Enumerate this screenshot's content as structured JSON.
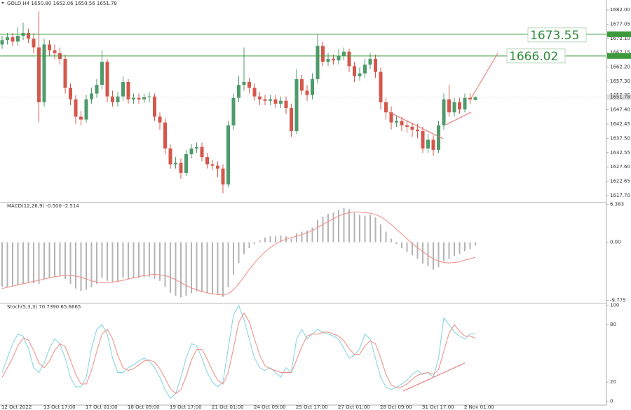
{
  "chart_data": [
    {
      "type": "candlestick",
      "title": "GOLD,H4 1650.80 1652.06 1650.56 1651.78",
      "up_color": "#4f9a6b",
      "down_color": "#d5574b",
      "categories": [
        "12 Oct 2022",
        null,
        null,
        null,
        null,
        null,
        null,
        null,
        "13 Oct 17:00",
        null,
        null,
        null,
        null,
        null,
        null,
        null,
        "17 Oct 01:00",
        null,
        null,
        null,
        null,
        null,
        null,
        null,
        "18 Oct 09:00",
        null,
        null,
        null,
        null,
        null,
        null,
        null,
        "19 Oct 17:00",
        null,
        null,
        null,
        null,
        null,
        null,
        null,
        "21 Oct 01:00",
        null,
        null,
        null,
        null,
        null,
        null,
        null,
        "24 Oct 09:00",
        null,
        null,
        null,
        null,
        null,
        null,
        null,
        "25 Oct 17:00",
        null,
        null,
        null,
        null,
        null,
        null,
        null,
        "27 Oct 01:00",
        null,
        null,
        null,
        null,
        null,
        null,
        null,
        "28 Oct 09:00",
        null,
        null,
        null,
        null,
        null,
        null,
        null,
        "31 Oct 17:00",
        null,
        null,
        null,
        null,
        null,
        null,
        null,
        "2 Nov 01:00",
        null,
        null
      ],
      "open": [
        1670,
        1671.5,
        1672.5,
        1671,
        1673,
        1674,
        1672,
        1669,
        1650,
        1670,
        1668,
        1667,
        1665,
        1655,
        1651,
        1645,
        1644,
        1651,
        1653,
        1656,
        1664,
        1652,
        1650,
        1652,
        1657,
        1651,
        1651.5,
        1651,
        1651.8,
        1652,
        1645,
        1643,
        1634,
        1628.5,
        1629,
        1625.5,
        1632,
        1634,
        1634.5,
        1631,
        1628.5,
        1628,
        1627,
        1621.5,
        1642,
        1651.5,
        1656,
        1657,
        1655,
        1652,
        1651,
        1650.5,
        1651,
        1649.5,
        1650.5,
        1648,
        1640,
        1658,
        1654,
        1652.5,
        1658,
        1669.5,
        1664,
        1665,
        1664.5,
        1666,
        1667.5,
        1662.5,
        1659,
        1660,
        1663,
        1665,
        1660.5,
        1650,
        1646.5,
        1643,
        1643.5,
        1642,
        1641.5,
        1640.5,
        1640,
        1634,
        1637,
        1633.5,
        1642,
        1651,
        1646.5,
        1650,
        1647.5,
        1651.5,
        1650.8
      ],
      "high": [
        1673,
        1674,
        1674,
        1676,
        1677.5,
        1675.5,
        1674,
        1681.5,
        1672,
        1671.5,
        1670,
        1669,
        1666.5,
        1656.5,
        1652.5,
        1647,
        1652.5,
        1655,
        1658,
        1668,
        1665,
        1654,
        1653.5,
        1659,
        1658,
        1653,
        1653,
        1653,
        1653.5,
        1653,
        1646.5,
        1644.5,
        1635.5,
        1631,
        1630.5,
        1633.5,
        1635.5,
        1636,
        1636,
        1632.5,
        1630,
        1629.5,
        1628.5,
        1643.5,
        1653,
        1659,
        1669,
        1658.5,
        1656.5,
        1653.5,
        1652.5,
        1652.5,
        1652.5,
        1652,
        1652,
        1649.5,
        1661.5,
        1659.5,
        1656,
        1660,
        1673.5,
        1671,
        1667,
        1666.5,
        1668.5,
        1669,
        1668.5,
        1664,
        1662,
        1665,
        1667,
        1666.5,
        1662,
        1651.5,
        1648.5,
        1645.5,
        1645,
        1643.5,
        1643,
        1642.5,
        1641.5,
        1639,
        1638.5,
        1643.5,
        1653,
        1656,
        1651.5,
        1651.5,
        1653,
        1653,
        1652.06
      ],
      "low": [
        1668.5,
        1670,
        1669.5,
        1669.5,
        1671.5,
        1670.5,
        1667,
        1643,
        1648.5,
        1666,
        1665,
        1663,
        1653,
        1649,
        1642.5,
        1642,
        1643,
        1649.5,
        1651.5,
        1654.5,
        1650,
        1648.5,
        1648.5,
        1650.5,
        1649.5,
        1649.5,
        1649.5,
        1649.8,
        1650,
        1643.5,
        1640.5,
        1632,
        1627,
        1627,
        1623.5,
        1624.5,
        1630.5,
        1632.5,
        1629.5,
        1627,
        1626.5,
        1624,
        1618.5,
        1620.5,
        1640.5,
        1650,
        1654,
        1653,
        1650.5,
        1649,
        1649,
        1649,
        1648,
        1648,
        1646,
        1638,
        1639,
        1652.5,
        1650.5,
        1651,
        1656.5,
        1662.5,
        1662.5,
        1663,
        1663,
        1664.5,
        1660.5,
        1657,
        1657.5,
        1658.5,
        1661.5,
        1658.5,
        1647.5,
        1644,
        1640.5,
        1641.5,
        1640,
        1639.5,
        1638,
        1637.5,
        1632.5,
        1632.5,
        1631.5,
        1632.5,
        1640.5,
        1645,
        1645,
        1646,
        1646.5,
        1649.5,
        1650.56
      ],
      "close": [
        1671.5,
        1672.5,
        1671,
        1673,
        1674,
        1672,
        1669,
        1650,
        1670,
        1668,
        1667,
        1665,
        1655,
        1651,
        1645,
        1644,
        1651,
        1653,
        1656,
        1664,
        1652,
        1650,
        1652,
        1657,
        1651,
        1651.5,
        1651,
        1651.8,
        1652,
        1645,
        1643,
        1634,
        1628.5,
        1629,
        1625.5,
        1632,
        1634,
        1634.5,
        1631,
        1628.5,
        1628,
        1627,
        1621.5,
        1642,
        1651.5,
        1656,
        1657,
        1655,
        1652,
        1651,
        1650.5,
        1651,
        1649.5,
        1650.5,
        1648,
        1640,
        1658,
        1654,
        1652.5,
        1658,
        1669.5,
        1664,
        1665,
        1664.5,
        1666,
        1667.5,
        1662.5,
        1659,
        1660,
        1663,
        1665,
        1660.5,
        1650,
        1646.5,
        1643,
        1643.5,
        1642,
        1641.5,
        1640.5,
        1640,
        1634,
        1637,
        1633.5,
        1642,
        1651,
        1646.5,
        1650,
        1647.5,
        1651.5,
        1651,
        1651.78
      ],
      "ylim": [
        1615.5,
        1685.4
      ],
      "yticks": [
        {
          "value": 1682,
          "label": "1682.00"
        },
        {
          "value": 1677.05,
          "label": "1677.05"
        },
        {
          "value": 1672.1,
          "label": "1672.10"
        },
        {
          "value": 1667.15,
          "label": "1667.15"
        },
        {
          "value": 1662.2,
          "label": "1662.20"
        },
        {
          "value": 1657.3,
          "label": "1657.30"
        },
        {
          "value": 1652.35,
          "label": "1652.35"
        },
        {
          "value": 1647.4,
          "label": "1647.40"
        },
        {
          "value": 1642.45,
          "label": "1642.45"
        },
        {
          "value": 1637.5,
          "label": "1637.50"
        },
        {
          "value": 1632.55,
          "label": "1632.55"
        },
        {
          "value": 1627.6,
          "label": "1627.60"
        },
        {
          "value": 1622.65,
          "label": "1622.65"
        },
        {
          "value": 1617.7,
          "label": "1617.70"
        }
      ],
      "levels": [
        {
          "value": 1673.55,
          "label": "1673.55"
        },
        {
          "value": 1666.02,
          "label": "1666.02"
        }
      ],
      "level_color": "#3c9a3c"
    },
    {
      "type": "bar",
      "title": "MACD(12,26,9) -0.500 -2.514",
      "series": [
        {
          "type": "bar",
          "color": "#b4b4b4",
          "values": [
            -7.5,
            -7.6,
            -7.4,
            -7.2,
            -7.0,
            -6.8,
            -6.9,
            -7.0,
            -6.2,
            -6.0,
            -5.8,
            -5.6,
            -6.2,
            -7.0,
            -7.8,
            -8.2,
            -8.0,
            -7.6,
            -7.0,
            -6.0,
            -6.5,
            -6.8,
            -6.7,
            -6.0,
            -6.2,
            -6.1,
            -6.0,
            -5.9,
            -5.8,
            -6.2,
            -6.5,
            -7.5,
            -8.5,
            -9.0,
            -9.3,
            -9.0,
            -8.6,
            -8.3,
            -8.4,
            -8.6,
            -8.8,
            -8.9,
            -9.2,
            -7.6,
            -5.5,
            -3.5,
            -2.0,
            -1.0,
            -0.3,
            0.3,
            0.8,
            1.0,
            1.0,
            1.1,
            1.0,
            0.6,
            1.5,
            1.8,
            2.0,
            2.5,
            3.8,
            4.3,
            4.8,
            5.0,
            5.4,
            5.8,
            5.6,
            5.0,
            4.6,
            4.5,
            4.6,
            4.2,
            3.0,
            1.8,
            0.6,
            -0.3,
            -1.0,
            -1.6,
            -2.2,
            -2.8,
            -3.6,
            -4.0,
            -4.6,
            -4.2,
            -3.2,
            -2.8,
            -2.3,
            -2.0,
            -1.5,
            -1.1,
            -0.5
          ]
        },
        {
          "type": "line",
          "color": "#f08a80",
          "values": [
            -7.8,
            -7.6,
            -7.4,
            -7.2,
            -7.0,
            -6.8,
            -6.6,
            -6.4,
            -6.2,
            -6.0,
            -5.8,
            -5.7,
            -5.6,
            -5.6,
            -5.7,
            -5.9,
            -6.2,
            -6.5,
            -6.7,
            -6.8,
            -6.8,
            -6.7,
            -6.6,
            -6.4,
            -6.2,
            -6.0,
            -5.8,
            -5.6,
            -5.5,
            -5.4,
            -5.5,
            -5.6,
            -5.9,
            -6.3,
            -6.8,
            -7.3,
            -7.7,
            -8.0,
            -8.3,
            -8.5,
            -8.7,
            -8.8,
            -8.9,
            -8.7,
            -8.0,
            -7.0,
            -5.8,
            -4.6,
            -3.5,
            -2.5,
            -1.6,
            -0.9,
            -0.3,
            0.2,
            0.5,
            0.8,
            1.0,
            1.3,
            1.6,
            2.0,
            2.5,
            3.0,
            3.5,
            4.0,
            4.4,
            4.8,
            5.0,
            5.1,
            5.1,
            5.0,
            4.9,
            4.7,
            4.3,
            3.7,
            3.0,
            2.2,
            1.4,
            0.6,
            -0.2,
            -0.9,
            -1.6,
            -2.2,
            -2.8,
            -3.2,
            -3.4,
            -3.5,
            -3.4,
            -3.3,
            -3.0,
            -2.8,
            -2.514
          ]
        }
      ],
      "ylim": [
        -10.2,
        6.7
      ],
      "yticks": [
        6.383,
        {
          "value": 0,
          "label": "0.00"
        },
        -9.775
      ]
    },
    {
      "type": "line",
      "title": "Stoch(5,3,3) 70.7390 65.6665",
      "series": [
        {
          "type": "line",
          "color": "#7fd3df",
          "values": [
            30,
            45,
            60,
            70,
            68,
            55,
            35,
            30,
            40,
            55,
            65,
            60,
            45,
            25,
            15,
            15,
            25,
            55,
            75,
            80,
            70,
            45,
            30,
            30,
            35,
            38,
            42,
            45,
            42,
            35,
            25,
            12,
            3,
            8,
            25,
            45,
            60,
            58,
            45,
            30,
            20,
            15,
            20,
            55,
            90,
            100,
            85,
            65,
            45,
            35,
            32,
            35,
            30,
            25,
            35,
            30,
            65,
            75,
            65,
            70,
            75,
            72,
            70,
            68,
            65,
            55,
            45,
            48,
            55,
            70,
            65,
            45,
            25,
            15,
            12,
            15,
            18,
            22,
            28,
            32,
            28,
            30,
            25,
            45,
            87,
            80,
            72,
            68,
            65,
            70,
            70.739
          ]
        },
        {
          "type": "line",
          "color": "#f08a80",
          "values": [
            25,
            35,
            45,
            58,
            66,
            64,
            53,
            40,
            35,
            42,
            53,
            60,
            57,
            43,
            28,
            18,
            18,
            32,
            52,
            70,
            75,
            65,
            48,
            35,
            32,
            34,
            38,
            42,
            43,
            41,
            34,
            24,
            13,
            8,
            12,
            26,
            43,
            54,
            54,
            44,
            32,
            22,
            18,
            30,
            55,
            82,
            92,
            83,
            65,
            48,
            37,
            34,
            32,
            30,
            30,
            30,
            43,
            57,
            68,
            70,
            70,
            72,
            72,
            70,
            68,
            63,
            55,
            49,
            49,
            58,
            63,
            60,
            45,
            28,
            17,
            14,
            15,
            18,
            23,
            27,
            29,
            30,
            28,
            33,
            52,
            71,
            80,
            73,
            68,
            68,
            65.6665
          ]
        }
      ],
      "ylim": [
        -4,
        102
      ],
      "yticks": [
        100,
        80,
        20,
        0
      ]
    }
  ]
}
